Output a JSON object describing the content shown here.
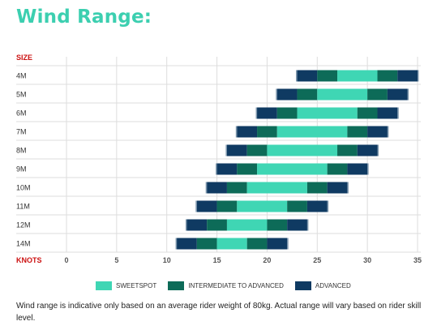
{
  "title": "Wind Range:",
  "footnote": "Wind range is indicative only based on an average rider weight of 80kg. Actual range will vary based on rider skill level.",
  "colors": {
    "sweetspot": "#3fd6b4",
    "intermediate": "#0d6b58",
    "advanced": "#0f3a62",
    "axis_label": "#cc1111",
    "grid": "#dddddd",
    "title": "#3ccfb0"
  },
  "chart_data": {
    "type": "bar",
    "orientation": "horizontal-stacked-range",
    "ylabel": "SIZE",
    "xlabel": "KNOTS",
    "xlim": [
      0,
      35
    ],
    "xticks": [
      0,
      5,
      10,
      15,
      20,
      25,
      30,
      35
    ],
    "categories": [
      "4M",
      "5M",
      "6M",
      "7M",
      "8M",
      "9M",
      "10M",
      "11M",
      "12M",
      "14M"
    ],
    "series_legend": [
      {
        "name": "SWEETSPOT",
        "color_key": "sweetspot"
      },
      {
        "name": "INTERMEDIATE TO ADVANCED",
        "color_key": "intermediate"
      },
      {
        "name": "ADVANCED",
        "color_key": "advanced"
      }
    ],
    "ranges": [
      {
        "size": "4M",
        "advanced_low": [
          23,
          25
        ],
        "intermediate_low": [
          25,
          27
        ],
        "sweetspot": [
          27,
          31
        ],
        "intermediate_high": [
          31,
          33
        ],
        "advanced_high": [
          33,
          35
        ]
      },
      {
        "size": "5M",
        "advanced_low": [
          21,
          23
        ],
        "intermediate_low": [
          23,
          25
        ],
        "sweetspot": [
          25,
          30
        ],
        "intermediate_high": [
          30,
          32
        ],
        "advanced_high": [
          32,
          34
        ]
      },
      {
        "size": "6M",
        "advanced_low": [
          19,
          21
        ],
        "intermediate_low": [
          21,
          23
        ],
        "sweetspot": [
          23,
          29
        ],
        "intermediate_high": [
          29,
          31
        ],
        "advanced_high": [
          31,
          33
        ]
      },
      {
        "size": "7M",
        "advanced_low": [
          17,
          19
        ],
        "intermediate_low": [
          19,
          21
        ],
        "sweetspot": [
          21,
          28
        ],
        "intermediate_high": [
          28,
          30
        ],
        "advanced_high": [
          30,
          32
        ]
      },
      {
        "size": "8M",
        "advanced_low": [
          16,
          18
        ],
        "intermediate_low": [
          18,
          20
        ],
        "sweetspot": [
          20,
          27
        ],
        "intermediate_high": [
          27,
          29
        ],
        "advanced_high": [
          29,
          31
        ]
      },
      {
        "size": "9M",
        "advanced_low": [
          15,
          17
        ],
        "intermediate_low": [
          17,
          19
        ],
        "sweetspot": [
          19,
          26
        ],
        "intermediate_high": [
          26,
          28
        ],
        "advanced_high": [
          28,
          30
        ]
      },
      {
        "size": "10M",
        "advanced_low": [
          14,
          16
        ],
        "intermediate_low": [
          16,
          18
        ],
        "sweetspot": [
          18,
          24
        ],
        "intermediate_high": [
          24,
          26
        ],
        "advanced_high": [
          26,
          28
        ]
      },
      {
        "size": "11M",
        "advanced_low": [
          13,
          15
        ],
        "intermediate_low": [
          15,
          17
        ],
        "sweetspot": [
          17,
          22
        ],
        "intermediate_high": [
          22,
          24
        ],
        "advanced_high": [
          24,
          26
        ]
      },
      {
        "size": "12M",
        "advanced_low": [
          12,
          14
        ],
        "intermediate_low": [
          14,
          16
        ],
        "sweetspot": [
          16,
          20
        ],
        "intermediate_high": [
          20,
          22
        ],
        "advanced_high": [
          22,
          24
        ]
      },
      {
        "size": "14M",
        "advanced_low": [
          11,
          13
        ],
        "intermediate_low": [
          13,
          15
        ],
        "sweetspot": [
          15,
          18
        ],
        "intermediate_high": [
          18,
          20
        ],
        "advanced_high": [
          20,
          22
        ]
      }
    ],
    "grid": true
  }
}
